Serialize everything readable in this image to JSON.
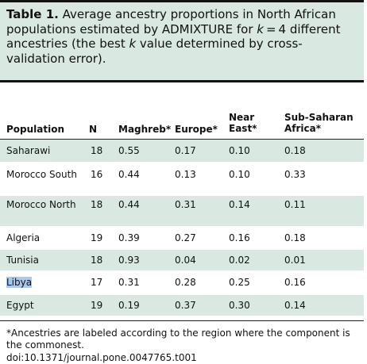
{
  "title": {
    "label": "Table 1.",
    "text_before_k": " Average ancestry proportions in North African populations estimated by ADMIXTURE for ",
    "k_symbol": "k",
    "text_after_k": " = 4 different ancestries (the best ",
    "k_symbol_2": "k",
    "text_end": " value determined by cross-validation error)."
  },
  "columns": {
    "population": "Population",
    "n": "N",
    "maghreb": "Maghreb*",
    "europe": "Europe*",
    "near_east": "Near East*",
    "subsaharan": "Sub-Saharan Africa*"
  },
  "rows": [
    {
      "population": "Saharawi",
      "n": "18",
      "maghreb": "0.55",
      "europe": "0.17",
      "near_east": "0.10",
      "subsaharan": "0.18"
    },
    {
      "population": "Morocco South",
      "n": "16",
      "maghreb": "0.44",
      "europe": "0.13",
      "near_east": "0.10",
      "subsaharan": "0.33"
    },
    {
      "population": "Morocco North",
      "n": "18",
      "maghreb": "0.44",
      "europe": "0.31",
      "near_east": "0.14",
      "subsaharan": "0.11"
    },
    {
      "population": "Algeria",
      "n": "19",
      "maghreb": "0.39",
      "europe": "0.27",
      "near_east": "0.16",
      "subsaharan": "0.18"
    },
    {
      "population": "Tunisia",
      "n": "18",
      "maghreb": "0.93",
      "europe": "0.04",
      "near_east": "0.02",
      "subsaharan": "0.01"
    },
    {
      "population": "Libya",
      "n": "17",
      "maghreb": "0.31",
      "europe": "0.28",
      "near_east": "0.25",
      "subsaharan": "0.16"
    },
    {
      "population": "Egypt",
      "n": "19",
      "maghreb": "0.19",
      "europe": "0.37",
      "near_east": "0.30",
      "subsaharan": "0.14"
    }
  ],
  "footnote": "*Ancestries are labeled according to the region where the component is the commonest.",
  "doi": "doi:10.1371/journal.pone.0047765.t001",
  "colors": {
    "shade": "#d9e8e1",
    "selection_highlight": "#aac8ee"
  }
}
